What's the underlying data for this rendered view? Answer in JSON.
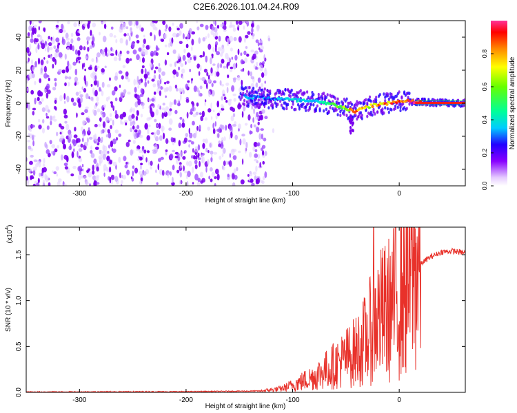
{
  "title": "C2E6.2026.101.04.24.R09",
  "colorbar": {
    "label": "Normalized spectral amplitude",
    "ticks": [
      "0.0",
      "0.2",
      "0.4",
      "0.6",
      "0.8"
    ],
    "tick_values": [
      0.0,
      0.2,
      0.4,
      0.6,
      0.8
    ]
  },
  "chart_data": [
    {
      "type": "heatmap",
      "name": "spectrogram",
      "xlabel": "Height of straight line (km)",
      "ylabel": "Frequency (Hz)",
      "xlim": [
        -350,
        62
      ],
      "ylim": [
        -50,
        50
      ],
      "xticks": [
        -300,
        -200,
        -100,
        0
      ],
      "xtick_labels": [
        "-300",
        "-200",
        "-100",
        "0"
      ],
      "yticks": [
        40,
        20,
        0,
        -20,
        -40
      ],
      "ytick_labels": [
        "40",
        "20",
        "0",
        "-20",
        "-40"
      ],
      "noise_region_x": [
        -350,
        -125
      ],
      "ridge": {
        "x": [
          -145,
          -120,
          -100,
          -80,
          -60,
          -50,
          -42,
          -36,
          -30,
          -22,
          -12,
          0,
          10,
          62
        ],
        "freq": [
          4,
          3,
          2,
          1,
          -1,
          -3,
          -5,
          -4,
          -2,
          -1,
          0,
          1,
          1,
          0
        ],
        "amplitude": [
          0.35,
          0.3,
          0.4,
          0.4,
          0.55,
          0.7,
          0.9,
          0.8,
          0.7,
          0.8,
          0.85,
          0.9,
          0.95,
          1.0
        ]
      }
    },
    {
      "type": "line",
      "name": "snr",
      "xlabel": "Height of straight line (km)",
      "ylabel": "SNR (10 * v/v)",
      "yscale_label": "(x10",
      "yscale_exp": "4",
      "yscale_close": ")",
      "xlim": [
        -350,
        62
      ],
      "ylim": [
        0,
        1.8
      ],
      "xticks": [
        -300,
        -200,
        -100,
        0
      ],
      "xtick_labels": [
        "-300",
        "-200",
        "-100",
        "0"
      ],
      "yticks": [
        0.0,
        0.5,
        1.0,
        1.5
      ],
      "ytick_labels": [
        "0.0",
        "0.5",
        "1.0",
        "1.5"
      ],
      "color": "#e8312a",
      "envelope": {
        "x": [
          -350,
          -200,
          -130,
          -110,
          -100,
          -80,
          -60,
          -40,
          -30,
          -22,
          -10,
          0,
          10,
          20,
          30,
          40,
          50,
          62
        ],
        "snr": [
          0.005,
          0.008,
          0.015,
          0.04,
          0.08,
          0.17,
          0.3,
          0.45,
          0.6,
          0.8,
          0.9,
          1.05,
          1.25,
          1.4,
          1.48,
          1.53,
          1.54,
          1.52
        ]
      },
      "spike": {
        "x": -24,
        "snr": 1.8
      }
    }
  ]
}
